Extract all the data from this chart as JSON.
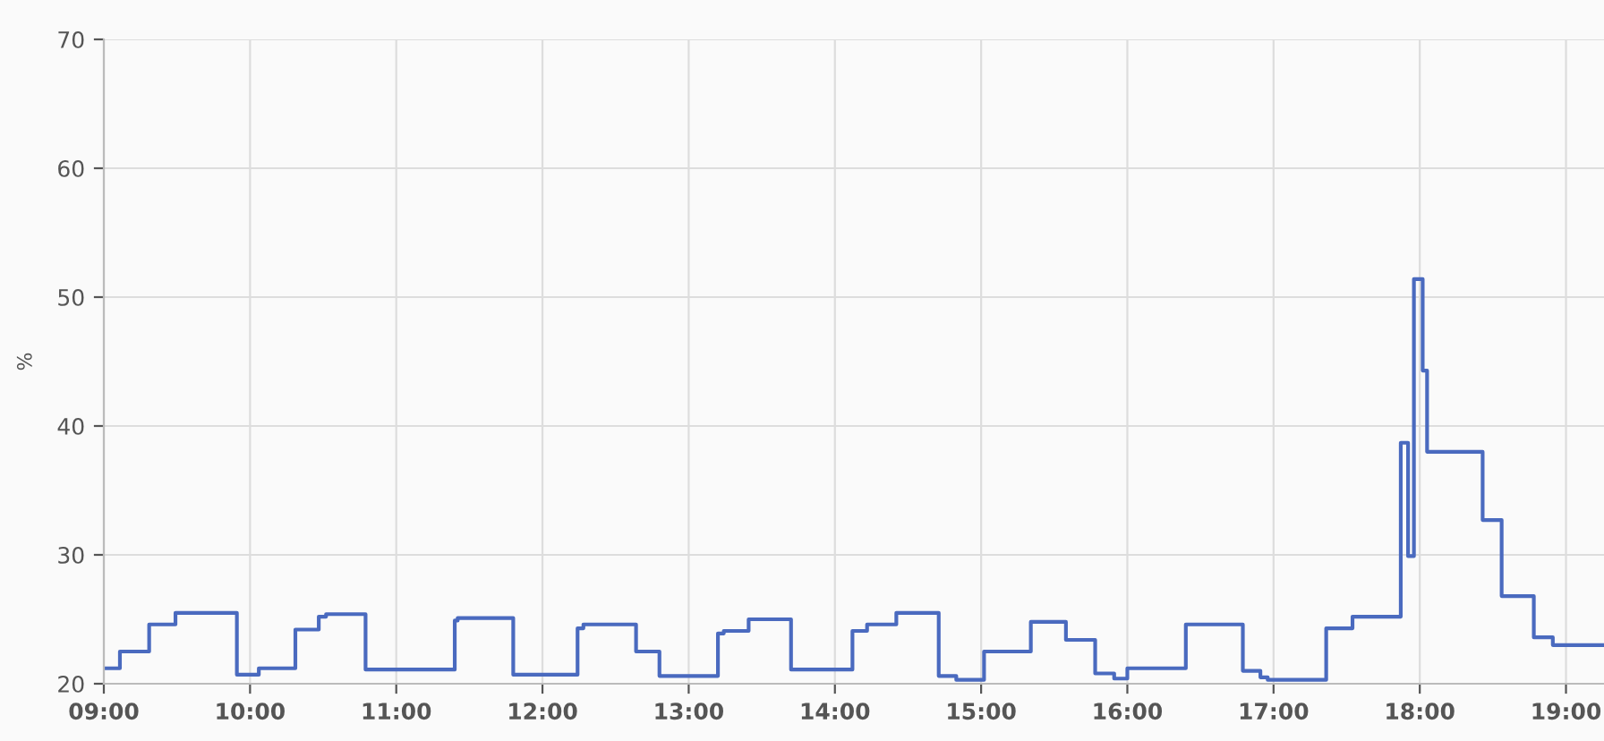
{
  "chart_data": {
    "type": "step",
    "ylabel": "%",
    "x": [
      9.0,
      9.11,
      9.31,
      9.49,
      9.91,
      10.06,
      10.31,
      10.47,
      10.52,
      10.79,
      11.4,
      11.42,
      11.8,
      12.24,
      12.28,
      12.64,
      12.8,
      13.2,
      13.24,
      13.41,
      13.7,
      14.12,
      14.22,
      14.42,
      14.71,
      14.83,
      15.02,
      15.34,
      15.58,
      15.78,
      15.91,
      16.0,
      16.4,
      16.79,
      16.91,
      16.96,
      17.36,
      17.54,
      17.87,
      17.92,
      17.96,
      18.02,
      18.05,
      18.43,
      18.56,
      18.78,
      18.91,
      19.26
    ],
    "series": [
      {
        "color": "#4a6abf",
        "values": [
          21.2,
          22.5,
          24.6,
          25.5,
          20.7,
          21.2,
          24.2,
          25.2,
          25.4,
          21.1,
          24.9,
          25.1,
          20.7,
          24.3,
          24.6,
          22.5,
          20.6,
          23.9,
          24.1,
          25.0,
          21.1,
          24.1,
          24.6,
          25.5,
          20.6,
          20.3,
          22.5,
          24.8,
          23.4,
          20.8,
          20.4,
          21.2,
          24.6,
          21.0,
          20.5,
          20.3,
          24.3,
          25.2,
          38.7,
          29.9,
          51.4,
          44.3,
          38.0,
          32.7,
          26.8,
          23.6,
          23.0,
          23.0
        ]
      }
    ],
    "xlim": [
      9,
      19.26
    ],
    "xticks": [
      {
        "value": 9,
        "label": "09:00"
      },
      {
        "value": 10,
        "label": "10:00"
      },
      {
        "value": 11,
        "label": "11:00"
      },
      {
        "value": 12,
        "label": "12:00"
      },
      {
        "value": 13,
        "label": "13:00"
      },
      {
        "value": 14,
        "label": "14:00"
      },
      {
        "value": 15,
        "label": "15:00"
      },
      {
        "value": 16,
        "label": "16:00"
      },
      {
        "value": 17,
        "label": "17:00"
      },
      {
        "value": 18,
        "label": "18:00"
      },
      {
        "value": 19,
        "label": "19:00"
      }
    ],
    "ylim": [
      20,
      70
    ],
    "yticks": [
      20,
      30,
      40,
      50,
      60,
      70
    ],
    "grid": true,
    "marker": "none",
    "line_style": "solid"
  }
}
